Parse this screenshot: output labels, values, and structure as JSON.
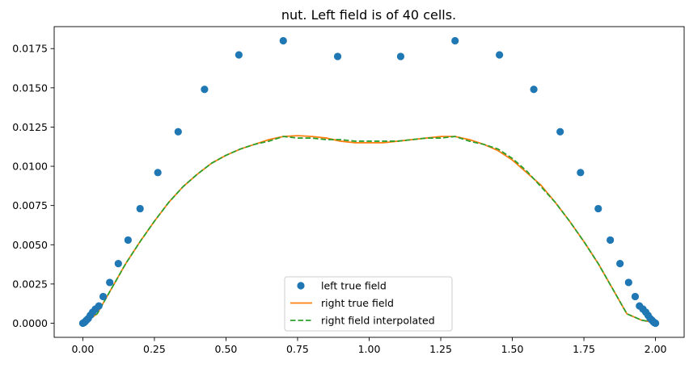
{
  "chart_data": {
    "type": "line",
    "title": "nut. Left field is of 40 cells.",
    "xlabel": "",
    "ylabel": "",
    "xlim": [
      -0.1,
      2.1
    ],
    "ylim": [
      -0.0009,
      0.0189
    ],
    "xticks": [
      0.0,
      0.25,
      0.5,
      0.75,
      1.0,
      1.25,
      1.5,
      1.75,
      2.0
    ],
    "xtick_labels": [
      "0.00",
      "0.25",
      "0.50",
      "0.75",
      "1.00",
      "1.25",
      "1.50",
      "1.75",
      "2.00"
    ],
    "yticks": [
      0.0,
      0.0025,
      0.005,
      0.0075,
      0.01,
      0.0125,
      0.015,
      0.0175
    ],
    "ytick_labels": [
      "0.0000",
      "0.0025",
      "0.0050",
      "0.0075",
      "0.0100",
      "0.0125",
      "0.0150",
      "0.0175"
    ],
    "grid": false,
    "legend_position": "lower center",
    "series": [
      {
        "name": "left true field",
        "style": "scatter",
        "color": "#1f77b4",
        "x": [
          0.0,
          0.004,
          0.008,
          0.013,
          0.019,
          0.026,
          0.034,
          0.044,
          0.056,
          0.071,
          0.094,
          0.124,
          0.158,
          0.2,
          0.262,
          0.333,
          0.425,
          0.545,
          0.7,
          0.89,
          1.11,
          1.3,
          1.455,
          1.575,
          1.667,
          1.738,
          1.8,
          1.842,
          1.876,
          1.906,
          1.929,
          1.944,
          1.956,
          1.966,
          1.974,
          1.981,
          1.987,
          1.992,
          1.996,
          2.0
        ],
        "y": [
          0.0,
          3e-05,
          0.0001,
          0.0002,
          0.0003,
          0.0005,
          0.0007,
          0.0009,
          0.0011,
          0.0017,
          0.0026,
          0.0038,
          0.0053,
          0.0073,
          0.0096,
          0.0122,
          0.0149,
          0.0171,
          0.018,
          0.017,
          0.017,
          0.018,
          0.0171,
          0.0149,
          0.0122,
          0.0096,
          0.0073,
          0.0053,
          0.0038,
          0.0026,
          0.0017,
          0.0011,
          0.0009,
          0.0007,
          0.0005,
          0.0003,
          0.0002,
          0.0001,
          3e-05,
          0.0
        ]
      },
      {
        "name": "right true field",
        "style": "solid",
        "color": "#ff7f0e",
        "x": [
          0.0,
          0.02,
          0.05,
          0.1,
          0.15,
          0.2,
          0.25,
          0.3,
          0.35,
          0.4,
          0.45,
          0.5,
          0.55,
          0.6,
          0.65,
          0.7,
          0.75,
          0.8,
          0.85,
          0.9,
          0.95,
          1.0,
          1.05,
          1.1,
          1.15,
          1.2,
          1.25,
          1.3,
          1.35,
          1.4,
          1.45,
          1.5,
          1.55,
          1.6,
          1.65,
          1.7,
          1.75,
          1.8,
          1.85,
          1.9,
          1.95,
          1.98,
          2.0
        ],
        "y": [
          0.0,
          0.0002,
          0.0006,
          0.0022,
          0.0038,
          0.0052,
          0.0065,
          0.0077,
          0.0087,
          0.0095,
          0.0102,
          0.0107,
          0.0111,
          0.0114,
          0.0117,
          0.0119,
          0.01195,
          0.0119,
          0.0118,
          0.0116,
          0.0115,
          0.0115,
          0.0115,
          0.0116,
          0.0117,
          0.0118,
          0.0119,
          0.0119,
          0.0117,
          0.0114,
          0.011,
          0.0104,
          0.0096,
          0.0088,
          0.0077,
          0.0065,
          0.0052,
          0.0038,
          0.0022,
          0.0006,
          0.0002,
          0.0001,
          0.0
        ]
      },
      {
        "name": "right field interpolated",
        "style": "dashed",
        "color": "#2ca02c",
        "x": [
          0.0,
          0.02,
          0.05,
          0.1,
          0.15,
          0.2,
          0.25,
          0.3,
          0.35,
          0.4,
          0.45,
          0.5,
          0.55,
          0.6,
          0.65,
          0.7,
          0.75,
          0.8,
          0.85,
          0.9,
          0.95,
          1.0,
          1.05,
          1.1,
          1.15,
          1.2,
          1.25,
          1.3,
          1.35,
          1.4,
          1.45,
          1.5,
          1.55,
          1.6,
          1.65,
          1.7,
          1.75,
          1.8,
          1.85,
          1.9,
          1.95,
          1.98,
          2.0
        ],
        "y": [
          0.0,
          0.0002,
          0.0006,
          0.0022,
          0.0038,
          0.0052,
          0.0065,
          0.0077,
          0.0087,
          0.0095,
          0.0102,
          0.0107,
          0.0111,
          0.0114,
          0.0116,
          0.0119,
          0.0118,
          0.0118,
          0.0117,
          0.0117,
          0.0116,
          0.0116,
          0.0116,
          0.0116,
          0.0117,
          0.0118,
          0.0118,
          0.0119,
          0.0116,
          0.0114,
          0.0111,
          0.0105,
          0.0097,
          0.0087,
          0.0077,
          0.0065,
          0.0052,
          0.0038,
          0.0022,
          0.0006,
          0.0002,
          0.0001,
          0.0
        ]
      }
    ]
  }
}
